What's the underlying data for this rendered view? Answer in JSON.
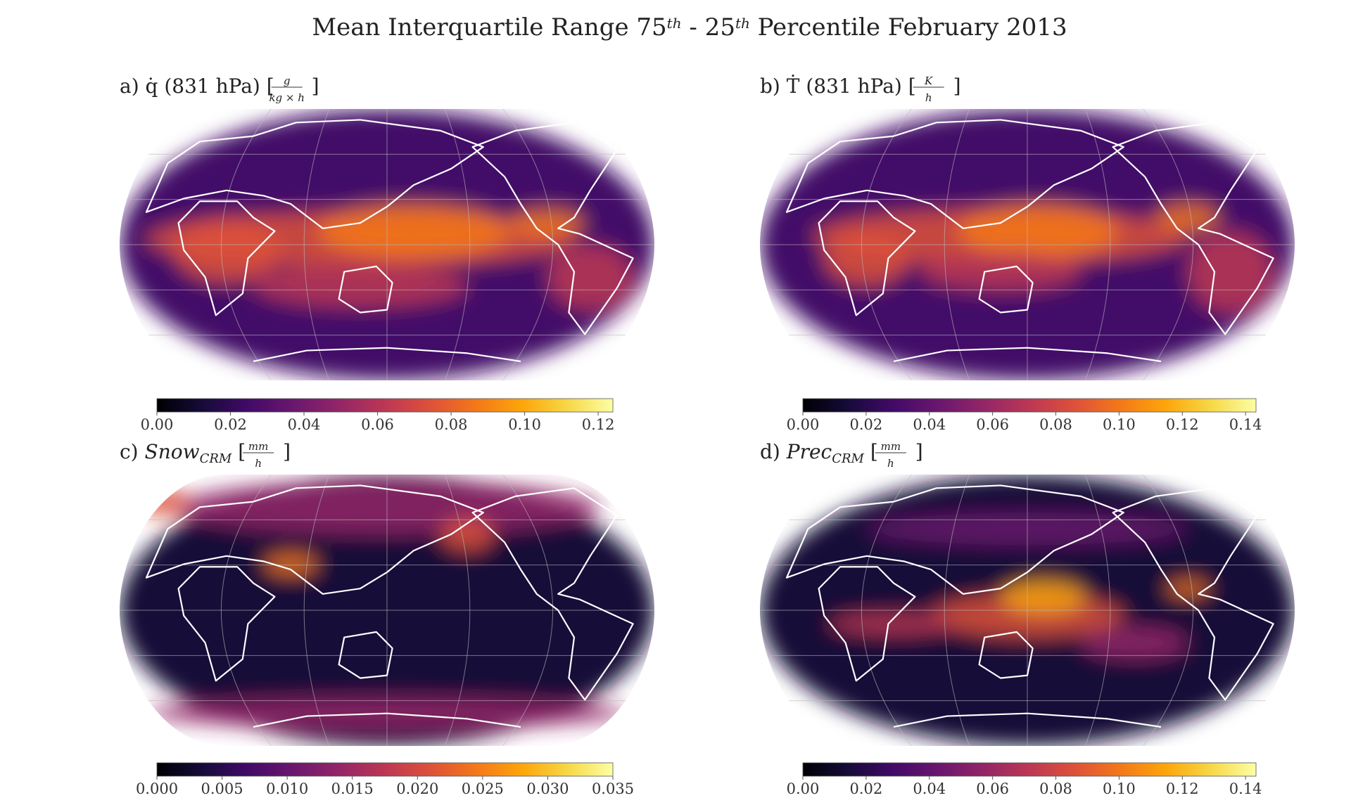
{
  "title": [
    {
      "text": "Mean Interquartile Range 75",
      "style": "normal"
    },
    {
      "text": "th",
      "style": "sup"
    },
    {
      "text": " - 25",
      "style": "normal"
    },
    {
      "text": "th",
      "style": "sup"
    },
    {
      "text": " Percentile February 2013",
      "style": "normal"
    }
  ],
  "chart_data": [
    {
      "type": "map",
      "colormap": "inferno",
      "label": [
        {
          "text": "a) q̇ (831 hPa) [",
          "style": "normal"
        },
        {
          "text": "g",
          "style": "frac-num"
        },
        {
          "text": "kg × h",
          "style": "frac-den"
        },
        {
          "text": "]",
          "style": "normal"
        }
      ],
      "clim": [
        0,
        0.124
      ],
      "cticks": [
        {
          "value": 0,
          "label": "0.00"
        },
        {
          "value": 0.02,
          "label": "0.02"
        },
        {
          "value": 0.04,
          "label": "0.04"
        },
        {
          "value": 0.06,
          "label": "0.06"
        },
        {
          "value": 0.08,
          "label": "0.08"
        },
        {
          "value": 0.1,
          "label": "0.10"
        },
        {
          "value": 0.12,
          "label": "0.12"
        }
      ]
    },
    {
      "type": "map",
      "colormap": "inferno",
      "label": [
        {
          "text": "b) Ṫ (831 hPa) [",
          "style": "normal"
        },
        {
          "text": "K",
          "style": "frac-num"
        },
        {
          "text": "h",
          "style": "frac-den"
        },
        {
          "text": "]",
          "style": "normal"
        }
      ],
      "clim": [
        0,
        0.1433
      ],
      "cticks": [
        {
          "value": 0,
          "label": "0.00"
        },
        {
          "value": 0.02,
          "label": "0.02"
        },
        {
          "value": 0.04,
          "label": "0.04"
        },
        {
          "value": 0.06,
          "label": "0.06"
        },
        {
          "value": 0.08,
          "label": "0.08"
        },
        {
          "value": 0.1,
          "label": "0.10"
        },
        {
          "value": 0.12,
          "label": "0.12"
        },
        {
          "value": 0.14,
          "label": "0.14"
        }
      ]
    },
    {
      "type": "map",
      "colormap": "inferno",
      "label": [
        {
          "text": "c) ",
          "style": "normal"
        },
        {
          "text": "Snow",
          "style": "italic"
        },
        {
          "text": "CRM",
          "style": "italic-sub"
        },
        {
          "text": " [",
          "style": "normal"
        },
        {
          "text": "mm",
          "style": "frac-num"
        },
        {
          "text": "h",
          "style": "frac-den"
        },
        {
          "text": "]",
          "style": "normal"
        }
      ],
      "clim": [
        0,
        0.035
      ],
      "cticks": [
        {
          "value": 0,
          "label": "0.000"
        },
        {
          "value": 0.005,
          "label": "0.005"
        },
        {
          "value": 0.01,
          "label": "0.010"
        },
        {
          "value": 0.015,
          "label": "0.015"
        },
        {
          "value": 0.02,
          "label": "0.020"
        },
        {
          "value": 0.025,
          "label": "0.025"
        },
        {
          "value": 0.03,
          "label": "0.030"
        },
        {
          "value": 0.035,
          "label": "0.035"
        }
      ]
    },
    {
      "type": "map",
      "colormap": "inferno",
      "label": [
        {
          "text": "d) ",
          "style": "normal"
        },
        {
          "text": "Prec",
          "style": "italic"
        },
        {
          "text": "CRM",
          "style": "italic-sub"
        },
        {
          "text": " [",
          "style": "normal"
        },
        {
          "text": "mm",
          "style": "frac-num"
        },
        {
          "text": "h",
          "style": "frac-den"
        },
        {
          "text": "]",
          "style": "normal"
        }
      ],
      "clim": [
        0,
        0.1433
      ],
      "cticks": [
        {
          "value": 0,
          "label": "0.00"
        },
        {
          "value": 0.02,
          "label": "0.02"
        },
        {
          "value": 0.04,
          "label": "0.04"
        },
        {
          "value": 0.06,
          "label": "0.06"
        },
        {
          "value": 0.08,
          "label": "0.08"
        },
        {
          "value": 0.1,
          "label": "0.10"
        },
        {
          "value": 0.12,
          "label": "0.12"
        },
        {
          "value": 0.14,
          "label": "0.14"
        }
      ]
    }
  ]
}
